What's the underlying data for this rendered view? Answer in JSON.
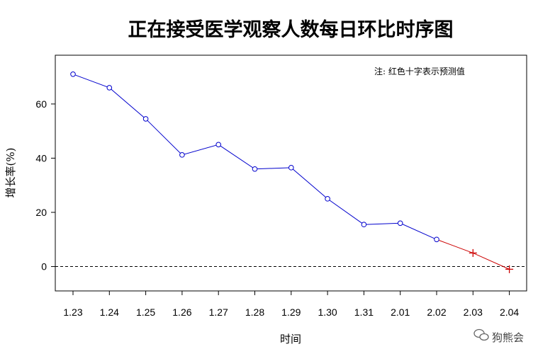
{
  "chart_data": {
    "type": "line",
    "title": "正在接受医学观察人数每日环比时序图",
    "xlabel": "时间",
    "ylabel": "增长率(%)",
    "categories": [
      "1.23",
      "1.24",
      "1.25",
      "1.26",
      "1.27",
      "1.28",
      "1.29",
      "1.30",
      "1.31",
      "2.01",
      "2.02",
      "2.03",
      "2.04"
    ],
    "y_ticks": [
      0,
      20,
      40,
      60
    ],
    "ylim": [
      -9,
      78
    ],
    "reference_line": 0,
    "annotation": "注: 红色十字表示预测值",
    "series": [
      {
        "values": [
          71,
          66,
          54.5,
          41.2,
          45,
          36,
          36.5,
          25,
          15.5,
          16,
          10,
          5,
          -1
        ],
        "predicted_from_index": 11
      }
    ],
    "colors": {
      "observed": "#0000cd",
      "predicted": "#cc0000",
      "reference": "#000000"
    },
    "grid": false
  },
  "watermark": "狗熊会"
}
